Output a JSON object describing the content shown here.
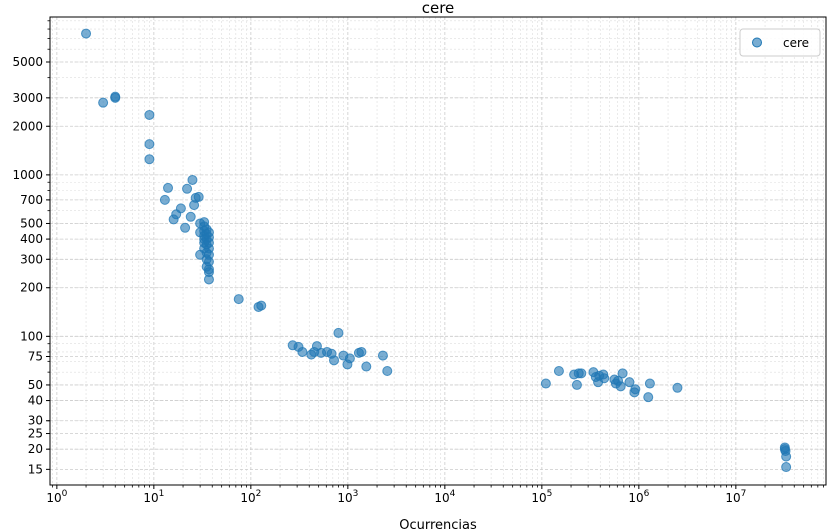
{
  "chart_data": {
    "type": "scatter",
    "title": "cere",
    "xlabel": "Ocurrencias",
    "ylabel": "",
    "x_scale": "log",
    "y_scale": "log",
    "xlim": [
      0.85,
      85000000.0
    ],
    "ylim": [
      12,
      9500
    ],
    "grid": true,
    "legend_position": "top-right",
    "color": "#1f77b4",
    "x_ticks": [
      {
        "value": 1,
        "base": "10",
        "exp": "0"
      },
      {
        "value": 10,
        "base": "10",
        "exp": "1"
      },
      {
        "value": 100,
        "base": "10",
        "exp": "2"
      },
      {
        "value": 1000,
        "base": "10",
        "exp": "3"
      },
      {
        "value": 10000,
        "base": "10",
        "exp": "4"
      },
      {
        "value": 100000,
        "base": "10",
        "exp": "5"
      },
      {
        "value": 1000000,
        "base": "10",
        "exp": "6"
      },
      {
        "value": 10000000,
        "base": "10",
        "exp": "7"
      }
    ],
    "y_ticks": [
      {
        "value": 15,
        "label": "15"
      },
      {
        "value": 20,
        "label": "20"
      },
      {
        "value": 25,
        "label": "25"
      },
      {
        "value": 30,
        "label": "30"
      },
      {
        "value": 40,
        "label": "40"
      },
      {
        "value": 50,
        "label": "50"
      },
      {
        "value": 75,
        "label": "75"
      },
      {
        "value": 100,
        "label": "100"
      },
      {
        "value": 200,
        "label": "200"
      },
      {
        "value": 300,
        "label": "300"
      },
      {
        "value": 400,
        "label": "400"
      },
      {
        "value": 500,
        "label": "500"
      },
      {
        "value": 700,
        "label": "700"
      },
      {
        "value": 1000,
        "label": "1000"
      },
      {
        "value": 2000,
        "label": "2000"
      },
      {
        "value": 3000,
        "label": "3000"
      },
      {
        "value": 5000,
        "label": "5000"
      }
    ],
    "series": [
      {
        "name": "cere",
        "points": [
          [
            2,
            7500
          ],
          [
            3,
            2800
          ],
          [
            4,
            3050
          ],
          [
            4,
            3000
          ],
          [
            9,
            2350
          ],
          [
            9,
            1550
          ],
          [
            9,
            1250
          ],
          [
            13,
            700
          ],
          [
            14,
            830
          ],
          [
            16,
            530
          ],
          [
            17,
            570
          ],
          [
            19,
            620
          ],
          [
            21,
            470
          ],
          [
            22,
            820
          ],
          [
            24,
            550
          ],
          [
            25,
            930
          ],
          [
            26,
            650
          ],
          [
            27,
            720
          ],
          [
            29,
            730
          ],
          [
            30,
            500
          ],
          [
            30,
            320
          ],
          [
            30,
            440
          ],
          [
            33,
            510
          ],
          [
            33,
            480
          ],
          [
            33,
            450
          ],
          [
            33,
            420
          ],
          [
            33,
            400
          ],
          [
            33,
            380
          ],
          [
            33,
            350
          ],
          [
            35,
            460
          ],
          [
            35,
            430
          ],
          [
            35,
            400
          ],
          [
            35,
            370
          ],
          [
            35,
            330
          ],
          [
            35,
            300
          ],
          [
            35,
            270
          ],
          [
            37,
            440
          ],
          [
            37,
            410
          ],
          [
            37,
            380
          ],
          [
            37,
            350
          ],
          [
            37,
            320
          ],
          [
            37,
            290
          ],
          [
            37,
            260
          ],
          [
            37,
            250
          ],
          [
            37,
            225
          ],
          [
            75,
            170
          ],
          [
            120,
            152
          ],
          [
            128,
            155
          ],
          [
            270,
            88
          ],
          [
            310,
            86
          ],
          [
            340,
            80
          ],
          [
            420,
            77
          ],
          [
            450,
            80
          ],
          [
            480,
            87
          ],
          [
            530,
            79
          ],
          [
            610,
            80
          ],
          [
            680,
            78
          ],
          [
            720,
            71
          ],
          [
            800,
            105
          ],
          [
            900,
            76
          ],
          [
            990,
            67
          ],
          [
            1050,
            73
          ],
          [
            1300,
            79
          ],
          [
            1380,
            80
          ],
          [
            1550,
            65
          ],
          [
            2300,
            76
          ],
          [
            2550,
            61
          ],
          [
            110000,
            51
          ],
          [
            150000,
            61
          ],
          [
            215000,
            58
          ],
          [
            230000,
            50
          ],
          [
            240000,
            59
          ],
          [
            255000,
            59
          ],
          [
            340000,
            60
          ],
          [
            360000,
            56
          ],
          [
            380000,
            52
          ],
          [
            390000,
            57
          ],
          [
            430000,
            58
          ],
          [
            440000,
            55
          ],
          [
            560000,
            54
          ],
          [
            580000,
            51
          ],
          [
            610000,
            53
          ],
          [
            650000,
            49
          ],
          [
            680000,
            59
          ],
          [
            800000,
            52
          ],
          [
            900000,
            45
          ],
          [
            920000,
            47
          ],
          [
            1250000,
            42
          ],
          [
            1300000,
            51
          ],
          [
            2500000,
            48
          ],
          [
            32000000,
            20.5
          ],
          [
            32000000,
            20
          ],
          [
            32500000,
            19.5
          ],
          [
            33000000,
            18
          ],
          [
            33000000,
            15.5
          ]
        ]
      }
    ]
  }
}
